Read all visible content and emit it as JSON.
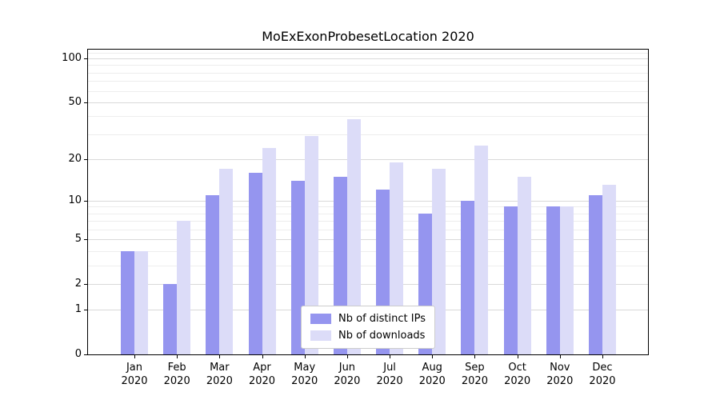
{
  "chart_data": {
    "type": "bar",
    "title": "MoExExonProbesetLocation 2020",
    "categories": [
      "Jan",
      "Feb",
      "Mar",
      "Apr",
      "May",
      "Jun",
      "Jul",
      "Aug",
      "Sep",
      "Oct",
      "Nov",
      "Dec"
    ],
    "x_tick_year": "2020",
    "series": [
      {
        "name": "Nb of distinct IPs",
        "color": "#9595ef",
        "values": [
          4,
          2,
          11,
          16,
          14,
          15,
          12,
          8,
          10,
          9,
          9,
          11
        ]
      },
      {
        "name": "Nb of downloads",
        "color": "#dcdcf8",
        "values": [
          4,
          7,
          17,
          24,
          29,
          38,
          19,
          17,
          25,
          15,
          9,
          13
        ]
      }
    ],
    "y_axis": {
      "scale": "log-with-zero (symlog)",
      "ticks": [
        0,
        1,
        2,
        5,
        10,
        20,
        50,
        100
      ],
      "minor_ticks": [
        3,
        4,
        6,
        7,
        8,
        9,
        30,
        40,
        60,
        70,
        80,
        90,
        110
      ],
      "range_max": 115,
      "grid": true
    },
    "legend": {
      "position": "bottom-center",
      "entries": [
        "Nb of distinct IPs",
        "Nb of downloads"
      ]
    }
  }
}
